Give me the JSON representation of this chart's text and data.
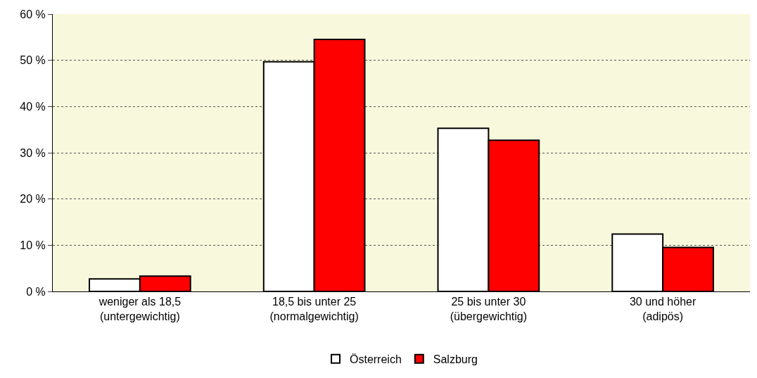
{
  "chart_data": {
    "type": "bar",
    "categories": [
      "weniger als 18,5\n(untergewichtig)",
      "18,5 bis unter 25\n(normalgewichtig)",
      "25 bis unter 30\n(übergewichtig)",
      "30 und höher\n(adipös)"
    ],
    "series": [
      {
        "name": "Österreich",
        "color": "#ffffff",
        "values": [
          2.7,
          49.7,
          35.3,
          12.4
        ]
      },
      {
        "name": "Salzburg",
        "color": "#ff0000",
        "values": [
          3.3,
          54.5,
          32.7,
          9.5
        ]
      }
    ],
    "ylim": [
      0,
      60
    ],
    "yticks": [
      {
        "value": 0,
        "label": "0 %"
      },
      {
        "value": 10,
        "label": "10 %"
      },
      {
        "value": 20,
        "label": "20 %"
      },
      {
        "value": 30,
        "label": "30 %"
      },
      {
        "value": 40,
        "label": "40 %"
      },
      {
        "value": 50,
        "label": "50 %"
      },
      {
        "value": 60,
        "label": "60 %"
      }
    ],
    "grid": "y",
    "legend": "bottom"
  }
}
